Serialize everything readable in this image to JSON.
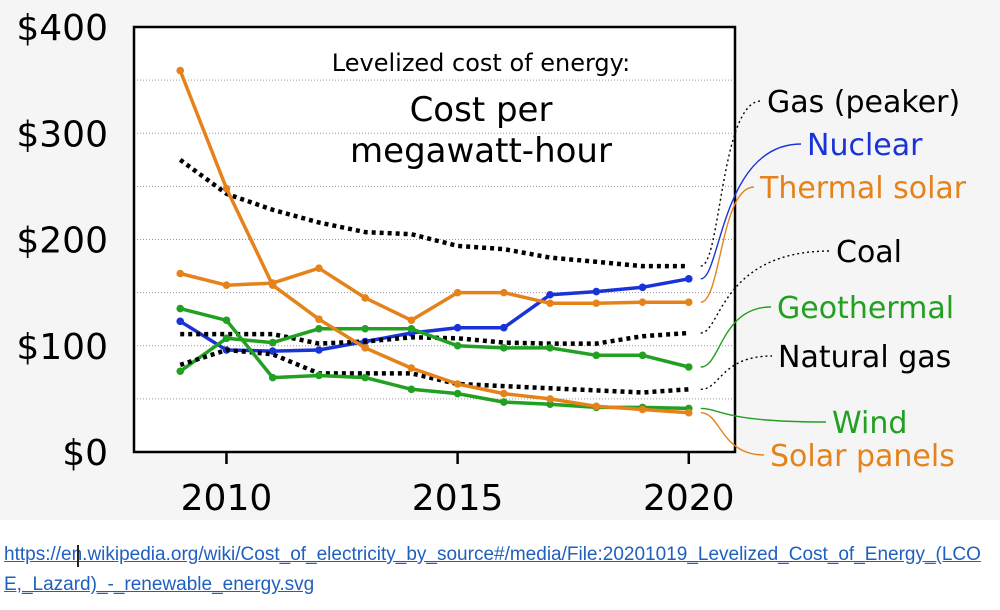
{
  "chart_data": {
    "type": "line",
    "title": "Levelized cost of energy:",
    "subtitle": "Cost per megawatt-hour",
    "xlabel": "",
    "ylabel": "",
    "xlim": [
      2008.0,
      2021.0
    ],
    "ylim": [
      0,
      400
    ],
    "x_ticks": [
      2010,
      2015,
      2020
    ],
    "x_tick_labels": [
      "2010",
      "2015",
      "2020"
    ],
    "y_ticks": [
      0,
      100,
      200,
      300,
      400
    ],
    "y_tick_labels": [
      "$0",
      "$100",
      "$200",
      "$300",
      "$400"
    ],
    "grid_y": [
      50,
      100,
      150,
      200,
      250,
      300,
      350
    ],
    "x": [
      2009,
      2010,
      2011,
      2012,
      2013,
      2014,
      2015,
      2016,
      2017,
      2018,
      2019,
      2020
    ],
    "series": [
      {
        "name": "Gas (peaker)",
        "color": "#000000",
        "style": "dotted",
        "markers": false,
        "values": [
          275,
          243,
          228,
          216,
          207,
          205,
          194,
          191,
          183,
          179,
          175,
          175
        ]
      },
      {
        "name": "Nuclear",
        "color": "#1a33d8",
        "style": "solid",
        "markers": true,
        "values": [
          123,
          96,
          95,
          96,
          104,
          112,
          117,
          117,
          148,
          151,
          155,
          163
        ]
      },
      {
        "name": "Thermal solar",
        "color": "#e5831a",
        "style": "solid",
        "markers": true,
        "values": [
          168,
          157,
          159,
          173,
          145,
          124,
          150,
          150,
          140,
          140,
          141,
          141
        ]
      },
      {
        "name": "Coal",
        "color": "#000000",
        "style": "dotted",
        "markers": false,
        "values": [
          111,
          111,
          111,
          102,
          104,
          108,
          107,
          103,
          102,
          102,
          109,
          112
        ]
      },
      {
        "name": "Geothermal",
        "color": "#22a022",
        "style": "solid",
        "markers": true,
        "values": [
          76,
          107,
          103,
          116,
          116,
          116,
          100,
          98,
          98,
          91,
          91,
          80
        ]
      },
      {
        "name": "Natural gas",
        "color": "#000000",
        "style": "dotted",
        "markers": false,
        "values": [
          82,
          96,
          92,
          74,
          74,
          74,
          64,
          62,
          60,
          58,
          56,
          59
        ]
      },
      {
        "name": "Wind",
        "color": "#22a022",
        "style": "solid",
        "markers": true,
        "values": [
          135,
          124,
          70,
          72,
          70,
          59,
          55,
          47,
          45,
          42,
          42,
          41
        ]
      },
      {
        "name": "Solar panels",
        "color": "#e5831a",
        "style": "solid",
        "markers": true,
        "values": [
          359,
          248,
          157,
          125,
          98,
          79,
          64,
          55,
          50,
          43,
          40,
          37
        ]
      }
    ],
    "labels": [
      {
        "series": "Gas (peaker)",
        "text": "Gas (peaker)",
        "color": "#000000"
      },
      {
        "series": "Nuclear",
        "text": "Nuclear",
        "color": "#1a33d8"
      },
      {
        "series": "Thermal solar",
        "text": "Thermal solar",
        "color": "#e5831a"
      },
      {
        "series": "Coal",
        "text": "Coal",
        "color": "#000000"
      },
      {
        "series": "Geothermal",
        "text": "Geothermal",
        "color": "#22a022"
      },
      {
        "series": "Natural gas",
        "text": "Natural gas",
        "color": "#000000"
      },
      {
        "series": "Wind",
        "text": "Wind",
        "color": "#22a022"
      },
      {
        "series": "Solar panels",
        "text": "Solar panels",
        "color": "#e5831a"
      }
    ],
    "legend": "right, inline labels with connector lines",
    "grid": true
  },
  "source": {
    "url": "https://en.wikipedia.org/wiki/Cost_of_electricity_by_source#/media/File:20201019_Levelized_Cost_of_Energy_(LCOE,_Lazard)_-_renewable_energy.svg",
    "color": "#1f5fbf"
  }
}
